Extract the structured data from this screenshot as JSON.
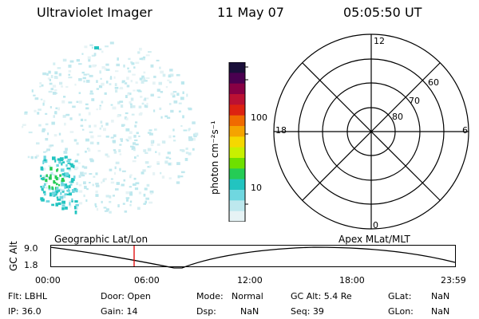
{
  "header": {
    "instrument": "Ultraviolet Imager",
    "date": "11 May 07",
    "time": "05:05:50 UT"
  },
  "colorbar": {
    "unit_label": "photon cm⁻²s⁻¹",
    "ticks": [
      "100",
      "10"
    ],
    "colors": [
      "#1a0f3a",
      "#4a0050",
      "#880044",
      "#bb1133",
      "#dd2211",
      "#f06a00",
      "#f5a300",
      "#f5d800",
      "#c8f000",
      "#6ee000",
      "#25cc55",
      "#22c4c0",
      "#6fd7e0",
      "#bde8ee",
      "#e6f3f5"
    ]
  },
  "polar": {
    "mlt_labels": {
      "top": "12",
      "left": "18",
      "right": "6",
      "bottom": "0"
    },
    "lat_labels": [
      "60",
      "70",
      "80"
    ]
  },
  "timeline": {
    "ylabel": "GC Alt",
    "ymax_label": "9.0",
    "ymin_label": "1.8",
    "left_label": "Geographic Lat/Lon",
    "right_label": "Apex MLat/MLT",
    "ticks": [
      "00:00",
      "06:00",
      "12:00",
      "18:00",
      "23:59"
    ]
  },
  "footer": {
    "flt": "Flt: LBHL",
    "ip": "IP: 36.0",
    "door": "Door: Open",
    "gain": "Gain: 14",
    "mode_label": "Mode:",
    "mode_value": "Normal",
    "dsp_label": "Dsp:",
    "dsp_value": "NaN",
    "gcalt": "GC Alt: 5.4 Re",
    "seq": "Seq: 39",
    "glat_label": "GLat:",
    "glat_value": "NaN",
    "glon_label": "GLon:",
    "glon_value": "NaN"
  }
}
